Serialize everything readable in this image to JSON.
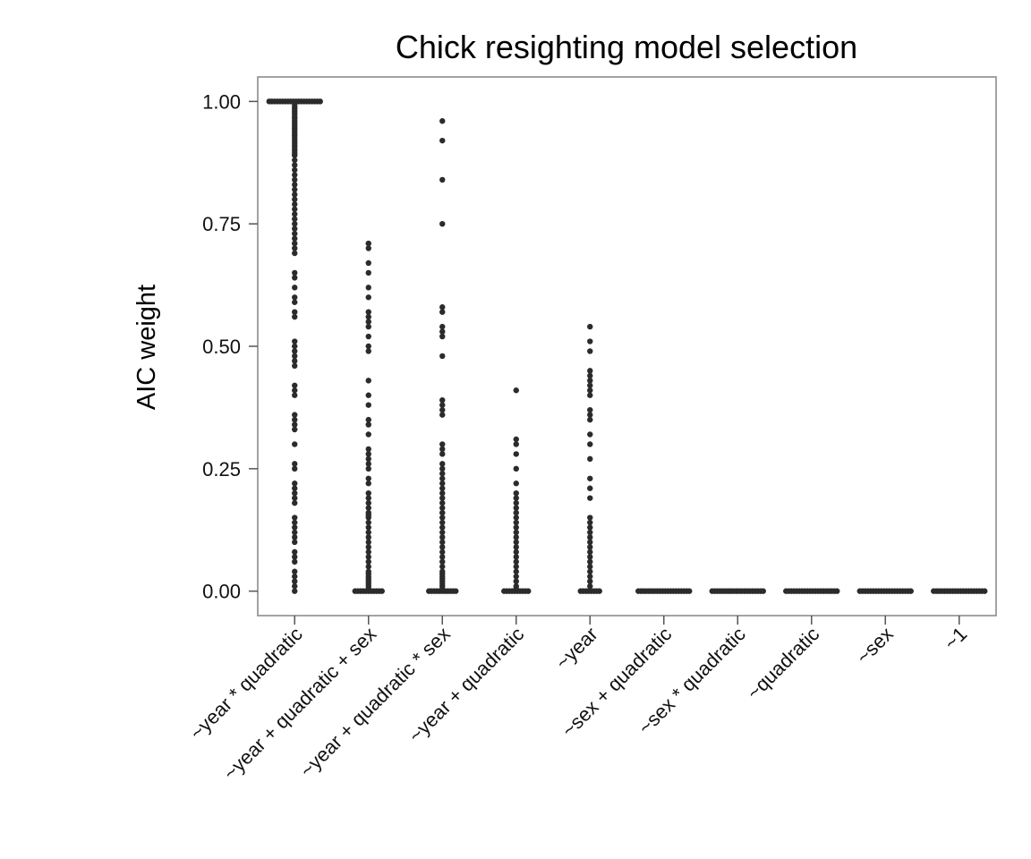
{
  "chart_data": {
    "type": "scatter",
    "title": "Chick resighting model selection",
    "xlabel": "",
    "ylabel": "AIC weight",
    "ylim": [
      -0.05,
      1.05
    ],
    "yticks": [
      0.0,
      0.25,
      0.5,
      0.75,
      1.0
    ],
    "ytick_labels": [
      "0.00",
      "0.25",
      "0.50",
      "0.75",
      "1.00"
    ],
    "grid": false,
    "legend": "none",
    "point_color": "#2b2b2b",
    "categories": [
      "~year * quadratic",
      "~year + quadratic + sex",
      "~year + quadratic * sex",
      "~year + quadratic",
      "~year",
      "~sex + quadratic",
      "~sex * quadratic",
      "~quadratic",
      "~sex",
      "~1"
    ],
    "series": [
      {
        "category": "~year * quadratic",
        "values": [
          1.0,
          1.0,
          1.0,
          1.0,
          1.0,
          1.0,
          1.0,
          1.0,
          1.0,
          1.0,
          1.0,
          1.0,
          1.0,
          1.0,
          1.0,
          1.0,
          1.0,
          1.0,
          1.0,
          1.0,
          0.995,
          0.99,
          0.985,
          0.98,
          0.975,
          0.97,
          0.965,
          0.96,
          0.955,
          0.95,
          0.945,
          0.94,
          0.935,
          0.93,
          0.925,
          0.92,
          0.915,
          0.91,
          0.905,
          0.9,
          0.895,
          0.89,
          0.88,
          0.87,
          0.86,
          0.85,
          0.84,
          0.83,
          0.82,
          0.81,
          0.8,
          0.79,
          0.78,
          0.77,
          0.76,
          0.75,
          0.74,
          0.73,
          0.72,
          0.71,
          0.7,
          0.69,
          0.65,
          0.64,
          0.62,
          0.6,
          0.59,
          0.57,
          0.56,
          0.51,
          0.5,
          0.49,
          0.48,
          0.47,
          0.46,
          0.42,
          0.41,
          0.4,
          0.36,
          0.35,
          0.34,
          0.33,
          0.3,
          0.26,
          0.25,
          0.22,
          0.21,
          0.2,
          0.19,
          0.18,
          0.15,
          0.14,
          0.13,
          0.12,
          0.11,
          0.1,
          0.08,
          0.07,
          0.06,
          0.04,
          0.03,
          0.02,
          0.01,
          0.0
        ]
      },
      {
        "category": "~year + quadratic + sex",
        "values": [
          0.71,
          0.7,
          0.67,
          0.65,
          0.62,
          0.6,
          0.57,
          0.56,
          0.55,
          0.54,
          0.52,
          0.5,
          0.49,
          0.43,
          0.4,
          0.38,
          0.35,
          0.34,
          0.32,
          0.29,
          0.28,
          0.27,
          0.26,
          0.25,
          0.23,
          0.22,
          0.2,
          0.19,
          0.18,
          0.17,
          0.16,
          0.155,
          0.15,
          0.14,
          0.13,
          0.12,
          0.11,
          0.1,
          0.09,
          0.08,
          0.07,
          0.06,
          0.05,
          0.04,
          0.035,
          0.03,
          0.025,
          0.02,
          0.015,
          0.01,
          0.005,
          0.0,
          0.0,
          0.0,
          0.0,
          0.0,
          0.0,
          0.0,
          0.0,
          0.0,
          0.0,
          0.0
        ]
      },
      {
        "category": "~year + quadratic * sex",
        "values": [
          0.96,
          0.92,
          0.84,
          0.75,
          0.58,
          0.57,
          0.54,
          0.53,
          0.52,
          0.48,
          0.39,
          0.38,
          0.37,
          0.36,
          0.3,
          0.29,
          0.28,
          0.26,
          0.25,
          0.24,
          0.23,
          0.22,
          0.21,
          0.2,
          0.19,
          0.18,
          0.17,
          0.16,
          0.15,
          0.14,
          0.13,
          0.12,
          0.11,
          0.1,
          0.09,
          0.08,
          0.07,
          0.06,
          0.05,
          0.04,
          0.035,
          0.03,
          0.025,
          0.02,
          0.015,
          0.01,
          0.005,
          0.0,
          0.0,
          0.0,
          0.0,
          0.0,
          0.0,
          0.0,
          0.0,
          0.0,
          0.0,
          0.0
        ]
      },
      {
        "category": "~year + quadratic",
        "values": [
          0.41,
          0.31,
          0.3,
          0.28,
          0.25,
          0.22,
          0.2,
          0.19,
          0.18,
          0.17,
          0.16,
          0.15,
          0.14,
          0.13,
          0.12,
          0.11,
          0.1,
          0.09,
          0.08,
          0.07,
          0.06,
          0.05,
          0.04,
          0.03,
          0.02,
          0.01,
          0.005,
          0.0,
          0.0,
          0.0,
          0.0,
          0.0,
          0.0,
          0.0,
          0.0,
          0.0,
          0.0
        ]
      },
      {
        "category": "~year",
        "values": [
          0.54,
          0.51,
          0.49,
          0.45,
          0.44,
          0.43,
          0.42,
          0.41,
          0.4,
          0.37,
          0.36,
          0.35,
          0.32,
          0.3,
          0.27,
          0.23,
          0.21,
          0.19,
          0.15,
          0.14,
          0.13,
          0.12,
          0.11,
          0.1,
          0.09,
          0.08,
          0.07,
          0.06,
          0.05,
          0.04,
          0.03,
          0.02,
          0.01,
          0.0,
          0.0,
          0.0,
          0.0,
          0.0,
          0.0,
          0.0,
          0.0
        ]
      },
      {
        "category": "~sex + quadratic",
        "values": [
          0.0,
          0.0,
          0.0,
          0.0,
          0.0,
          0.0,
          0.0,
          0.0,
          0.0,
          0.0,
          0.0,
          0.0,
          0.0,
          0.0,
          0.0,
          0.0,
          0.0,
          0.0,
          0.0,
          0.0
        ]
      },
      {
        "category": "~sex * quadratic",
        "values": [
          0.0,
          0.0,
          0.0,
          0.0,
          0.0,
          0.0,
          0.0,
          0.0,
          0.0,
          0.0,
          0.0,
          0.0,
          0.0,
          0.0,
          0.0,
          0.0,
          0.0,
          0.0,
          0.0,
          0.0
        ]
      },
      {
        "category": "~quadratic",
        "values": [
          0.0,
          0.0,
          0.0,
          0.0,
          0.0,
          0.0,
          0.0,
          0.0,
          0.0,
          0.0,
          0.0,
          0.0,
          0.0,
          0.0,
          0.0,
          0.0,
          0.0,
          0.0,
          0.0,
          0.0
        ]
      },
      {
        "category": "~sex",
        "values": [
          0.0,
          0.0,
          0.0,
          0.0,
          0.0,
          0.0,
          0.0,
          0.0,
          0.0,
          0.0,
          0.0,
          0.0,
          0.0,
          0.0,
          0.0,
          0.0,
          0.0,
          0.0,
          0.0,
          0.0
        ]
      },
      {
        "category": "~1",
        "values": [
          0.0,
          0.0,
          0.0,
          0.0,
          0.0,
          0.0,
          0.0,
          0.0,
          0.0,
          0.0,
          0.0,
          0.0,
          0.0,
          0.0,
          0.0,
          0.0,
          0.0,
          0.0,
          0.0,
          0.0
        ]
      }
    ]
  }
}
